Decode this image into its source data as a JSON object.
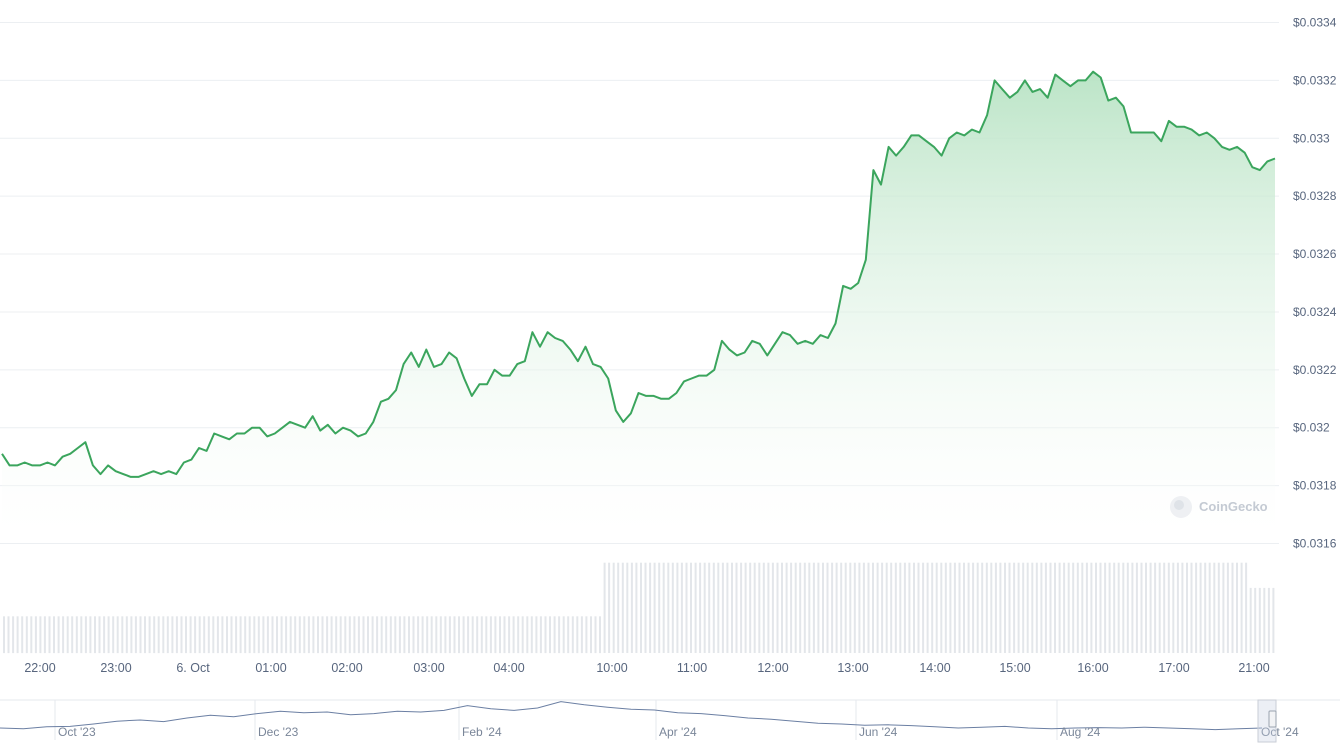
{
  "watermark": "CoinGecko",
  "colors": {
    "line": "#3ba55d",
    "area_top": "#b8e3c4",
    "grid": "#eceff2",
    "volume": "#e3e6ea",
    "navigator_line": "#6b7fa3"
  },
  "chart_data": {
    "type": "area",
    "y_axis_position": "right",
    "ylim": [
      0.03155,
      0.03345
    ],
    "y_ticks": [
      "$0.0334",
      "$0.0332",
      "$0.033",
      "$0.0328",
      "$0.0326",
      "$0.0324",
      "$0.0322",
      "$0.032",
      "$0.0318",
      "$0.0316"
    ],
    "y_tick_values": [
      0.0334,
      0.0332,
      0.033,
      0.0328,
      0.0326,
      0.0324,
      0.0322,
      0.032,
      0.0318,
      0.0316
    ],
    "x_ticks": [
      "22:00",
      "23:00",
      "6. Oct",
      "01:00",
      "02:00",
      "03:00",
      "04:00",
      "10:00",
      "11:00",
      "12:00",
      "13:00",
      "14:00",
      "15:00",
      "16:00",
      "17:00",
      "21:00"
    ],
    "grid": true,
    "series": [
      {
        "values": [
          0.03191,
          0.03187,
          0.03187,
          0.03188,
          0.03187,
          0.03187,
          0.03188,
          0.03187,
          0.0319,
          0.03191,
          0.03193,
          0.03195,
          0.03187,
          0.03184,
          0.03187,
          0.03185,
          0.03184,
          0.03183,
          0.03183,
          0.03184,
          0.03185,
          0.03184,
          0.03185,
          0.03184,
          0.03188,
          0.03189,
          0.03193,
          0.03192,
          0.03198,
          0.03197,
          0.03196,
          0.03198,
          0.03198,
          0.032,
          0.032,
          0.03197,
          0.03198,
          0.032,
          0.03202,
          0.03201,
          0.032,
          0.03204,
          0.03199,
          0.03201,
          0.03198,
          0.032,
          0.03199,
          0.03197,
          0.03198,
          0.03202,
          0.03209,
          0.0321,
          0.03213,
          0.03222,
          0.03226,
          0.03221,
          0.03227,
          0.03221,
          0.03222,
          0.03226,
          0.03224,
          0.03217,
          0.03211,
          0.03215,
          0.03215,
          0.0322,
          0.03218,
          0.03218,
          0.03222,
          0.03223,
          0.03233,
          0.03228,
          0.03233,
          0.03231,
          0.0323,
          0.03227,
          0.03223,
          0.03228,
          0.03222,
          0.03221,
          0.03217,
          0.03206,
          0.03202,
          0.03205,
          0.03212,
          0.03211,
          0.03211,
          0.0321,
          0.0321,
          0.03212,
          0.03216,
          0.03217,
          0.03218,
          0.03218,
          0.0322,
          0.0323,
          0.03227,
          0.03225,
          0.03226,
          0.0323,
          0.03229,
          0.03225,
          0.03229,
          0.03233,
          0.03232,
          0.03229,
          0.0323,
          0.03229,
          0.03232,
          0.03231,
          0.03236,
          0.03249,
          0.03248,
          0.0325,
          0.03258,
          0.03289,
          0.03284,
          0.03297,
          0.03294,
          0.03297,
          0.03301,
          0.03301,
          0.03299,
          0.03297,
          0.03294,
          0.033,
          0.03302,
          0.03301,
          0.03303,
          0.03302,
          0.03308,
          0.0332,
          0.03317,
          0.03314,
          0.03316,
          0.0332,
          0.03316,
          0.03317,
          0.03314,
          0.03322,
          0.0332,
          0.03318,
          0.0332,
          0.0332,
          0.03323,
          0.03321,
          0.03313,
          0.03314,
          0.03311,
          0.03302,
          0.03302,
          0.03302,
          0.03302,
          0.03299,
          0.03306,
          0.03304,
          0.03304,
          0.03303,
          0.03301,
          0.03302,
          0.033,
          0.03297,
          0.03296,
          0.03297,
          0.03295,
          0.0329,
          0.03289,
          0.03292,
          0.03293
        ]
      }
    ],
    "volume": {
      "relative_levels": [
        0.35,
        0.86,
        0.62
      ],
      "segments_start_fraction": [
        0.0,
        0.47,
        0.977
      ]
    },
    "navigator": {
      "x_ticks": [
        "Oct '23",
        "Dec '23",
        "Feb '24",
        "Apr '24",
        "Jun '24",
        "Aug '24",
        "Oct '24"
      ],
      "values": [
        0.3,
        0.28,
        0.33,
        0.34,
        0.4,
        0.47,
        0.5,
        0.46,
        0.55,
        0.62,
        0.58,
        0.66,
        0.72,
        0.68,
        0.7,
        0.63,
        0.66,
        0.72,
        0.7,
        0.74,
        0.86,
        0.78,
        0.74,
        0.8,
        0.96,
        0.88,
        0.82,
        0.77,
        0.75,
        0.68,
        0.66,
        0.61,
        0.55,
        0.52,
        0.47,
        0.42,
        0.4,
        0.37,
        0.38,
        0.36,
        0.33,
        0.3,
        0.32,
        0.34,
        0.3,
        0.28,
        0.3,
        0.31,
        0.3,
        0.32,
        0.3,
        0.28,
        0.26,
        0.28,
        0.3
      ]
    }
  }
}
